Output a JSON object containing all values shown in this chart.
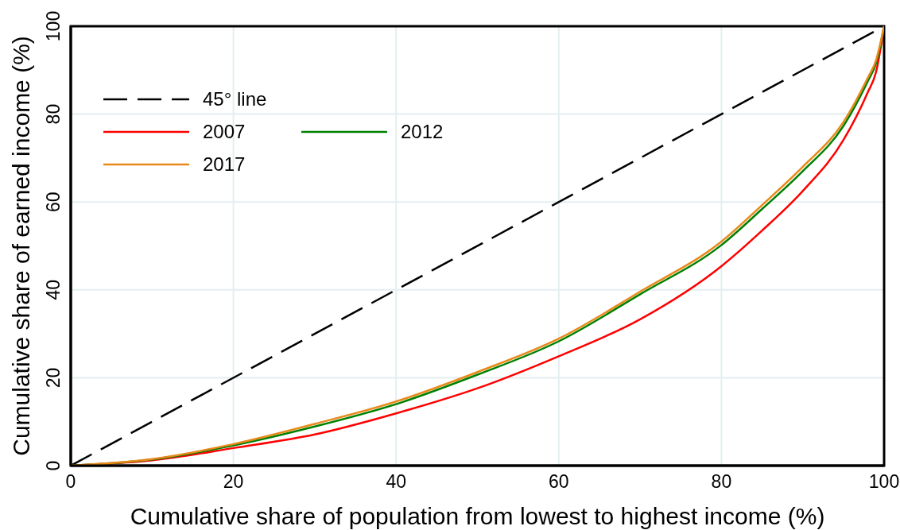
{
  "chart_data": {
    "type": "line",
    "xlabel": "Cumulative share of population from lowest to highest income (%)",
    "ylabel": "Cumulative share of earned income (%)",
    "x": [
      0,
      10,
      20,
      30,
      40,
      50,
      60,
      70,
      80,
      85,
      90,
      95,
      98,
      99,
      100
    ],
    "xlim": [
      0,
      100
    ],
    "xticks": [
      0,
      20,
      40,
      60,
      80,
      100
    ],
    "ylim": [
      0,
      100
    ],
    "yticks": [
      0,
      20,
      40,
      60,
      80,
      100
    ],
    "grid": true,
    "legend": "top left",
    "marker": "none",
    "series": [
      {
        "name": "45° line",
        "color": "#000000",
        "x": [
          0,
          100
        ],
        "values": [
          0,
          100
        ],
        "line_style": "dashed"
      },
      {
        "name": "2007",
        "color": "#ff0000",
        "values": [
          0,
          1.2,
          4.0,
          7.1,
          11.9,
          17.6,
          24.9,
          33.3,
          45.4,
          53.5,
          62.5,
          74.1,
          85,
          89.5,
          100
        ],
        "line_style": "solid"
      },
      {
        "name": "2012",
        "color": "#008000",
        "values": [
          0,
          1.4,
          4.6,
          8.9,
          14.0,
          20.7,
          28.3,
          39.0,
          50.2,
          58.4,
          67,
          77.3,
          87.5,
          91.5,
          100
        ],
        "line_style": "solid"
      },
      {
        "name": "2017",
        "color": "#e8891a",
        "values": [
          0,
          1.5,
          4.9,
          9.5,
          14.6,
          21.3,
          28.9,
          39.6,
          51,
          59.3,
          68,
          78.2,
          88.3,
          92.2,
          100
        ],
        "line_style": "solid"
      }
    ]
  }
}
